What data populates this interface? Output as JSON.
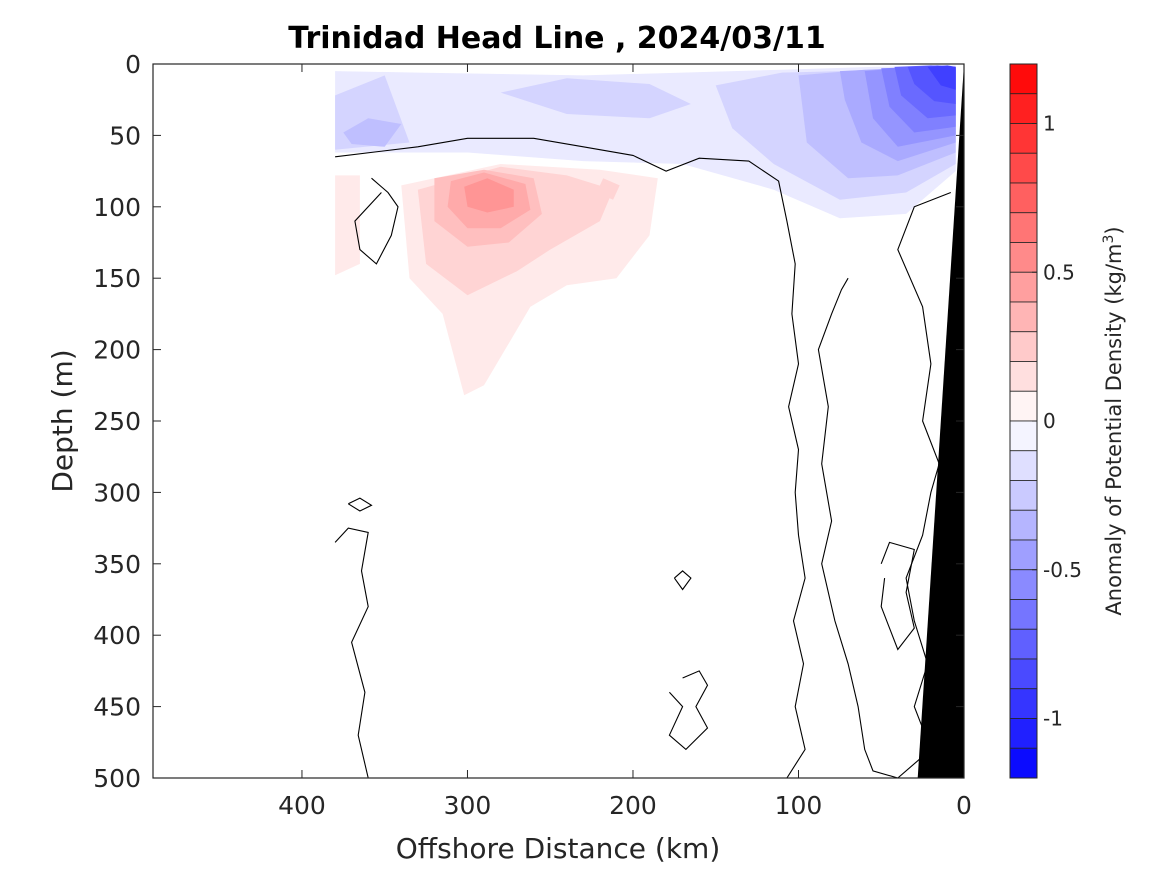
{
  "chart_data": {
    "type": "contour",
    "title": "Trinidad Head Line , 2024/03/11",
    "xlabel": "Offshore Distance (km)",
    "ylabel": "Depth (m)",
    "x_reversed": true,
    "y_reversed": true,
    "xlim": [
      0,
      490
    ],
    "ylim": [
      0,
      500
    ],
    "x_ticks": [
      400,
      300,
      200,
      100,
      0
    ],
    "x_tick_labels": [
      "400",
      "300",
      "200",
      "100",
      "0"
    ],
    "y_ticks": [
      0,
      50,
      100,
      150,
      200,
      250,
      300,
      350,
      400,
      450,
      500
    ],
    "y_tick_labels": [
      "0",
      "50",
      "100",
      "150",
      "200",
      "250",
      "300",
      "350",
      "400",
      "450",
      "500"
    ],
    "colorbar": {
      "label_prefix": "Anomaly of Potential Density (kg/m",
      "label_exponent": "3",
      "label_suffix": ")",
      "range": [
        -1.2,
        1.2
      ],
      "step": 0.1,
      "ticks": [
        1,
        0.5,
        0,
        -0.5,
        -1
      ],
      "tick_labels": [
        "1",
        "0.5",
        "0",
        "-0.5",
        "-1"
      ]
    },
    "zero_contour_color": "#000000",
    "bathymetry_color": "#000000",
    "regions": [
      {
        "name": "surface-negative",
        "level": -0.1,
        "points": [
          [
            380,
            5
          ],
          [
            330,
            6
          ],
          [
            230,
            8
          ],
          [
            170,
            6
          ],
          [
            110,
            4
          ],
          [
            55,
            2
          ],
          [
            5,
            1
          ],
          [
            5,
            75
          ],
          [
            35,
            105
          ],
          [
            75,
            108
          ],
          [
            115,
            88
          ],
          [
            170,
            70
          ],
          [
            230,
            68
          ],
          [
            300,
            62
          ],
          [
            380,
            62
          ]
        ]
      },
      {
        "name": "surface-negative",
        "level": -0.2,
        "points": [
          [
            380,
            22
          ],
          [
            350,
            8
          ],
          [
            335,
            55
          ],
          [
            380,
            60
          ]
        ]
      },
      {
        "name": "surface-negative",
        "level": -0.2,
        "points": [
          [
            280,
            20
          ],
          [
            240,
            10
          ],
          [
            190,
            14
          ],
          [
            165,
            28
          ],
          [
            190,
            38
          ],
          [
            240,
            35
          ]
        ]
      },
      {
        "name": "surface-negative",
        "level": -0.2,
        "points": [
          [
            150,
            15
          ],
          [
            110,
            6
          ],
          [
            40,
            4
          ],
          [
            5,
            5
          ],
          [
            5,
            70
          ],
          [
            35,
            90
          ],
          [
            75,
            95
          ],
          [
            115,
            70
          ],
          [
            140,
            45
          ]
        ]
      },
      {
        "name": "surface-negative",
        "level": -0.3,
        "points": [
          [
            375,
            48
          ],
          [
            360,
            38
          ],
          [
            340,
            42
          ],
          [
            350,
            58
          ],
          [
            370,
            56
          ]
        ]
      },
      {
        "name": "surface-negative",
        "level": -0.3,
        "points": [
          [
            100,
            8
          ],
          [
            60,
            4
          ],
          [
            5,
            4
          ],
          [
            5,
            62
          ],
          [
            40,
            78
          ],
          [
            70,
            80
          ],
          [
            95,
            55
          ]
        ]
      },
      {
        "name": "surface-negative",
        "level": -0.4,
        "points": [
          [
            75,
            5
          ],
          [
            40,
            3
          ],
          [
            5,
            4
          ],
          [
            5,
            55
          ],
          [
            40,
            68
          ],
          [
            62,
            55
          ],
          [
            72,
            25
          ]
        ]
      },
      {
        "name": "surface-negative",
        "level": -0.5,
        "points": [
          [
            60,
            5
          ],
          [
            30,
            2
          ],
          [
            5,
            3
          ],
          [
            5,
            50
          ],
          [
            40,
            58
          ],
          [
            55,
            38
          ]
        ]
      },
      {
        "name": "surface-negative",
        "level": -0.6,
        "points": [
          [
            50,
            3
          ],
          [
            25,
            2
          ],
          [
            5,
            3
          ],
          [
            5,
            44
          ],
          [
            30,
            48
          ],
          [
            45,
            30
          ]
        ]
      },
      {
        "name": "surface-negative",
        "level": -0.7,
        "points": [
          [
            42,
            2
          ],
          [
            20,
            1
          ],
          [
            5,
            2
          ],
          [
            5,
            36
          ],
          [
            22,
            38
          ],
          [
            38,
            22
          ]
        ]
      },
      {
        "name": "surface-negative",
        "level": -0.8,
        "points": [
          [
            34,
            2
          ],
          [
            16,
            1
          ],
          [
            5,
            2
          ],
          [
            5,
            28
          ],
          [
            18,
            26
          ],
          [
            30,
            14
          ]
        ]
      },
      {
        "name": "surface-negative",
        "level": -0.9,
        "points": [
          [
            22,
            2
          ],
          [
            10,
            1
          ],
          [
            5,
            2
          ],
          [
            5,
            18
          ],
          [
            14,
            15
          ]
        ]
      },
      {
        "name": "subsurface-positive",
        "level": 0.1,
        "points": [
          [
            380,
            78
          ],
          [
            365,
            78
          ],
          [
            365,
            140
          ],
          [
            380,
            148
          ]
        ]
      },
      {
        "name": "subsurface-positive",
        "level": 0.1,
        "points": [
          [
            340,
            85
          ],
          [
            280,
            70
          ],
          [
            220,
            74
          ],
          [
            185,
            80
          ],
          [
            190,
            120
          ],
          [
            210,
            150
          ],
          [
            240,
            155
          ],
          [
            262,
            170
          ],
          [
            290,
            225
          ],
          [
            302,
            232
          ],
          [
            315,
            175
          ],
          [
            335,
            150
          ]
        ]
      },
      {
        "name": "subsurface-positive",
        "level": 0.2,
        "points": [
          [
            330,
            88
          ],
          [
            280,
            72
          ],
          [
            240,
            78
          ],
          [
            212,
            88
          ],
          [
            220,
            110
          ],
          [
            250,
            130
          ],
          [
            270,
            145
          ],
          [
            300,
            162
          ],
          [
            325,
            140
          ]
        ]
      },
      {
        "name": "subsurface-positive",
        "level": 0.3,
        "points": [
          [
            320,
            80
          ],
          [
            290,
            74
          ],
          [
            260,
            80
          ],
          [
            255,
            105
          ],
          [
            275,
            125
          ],
          [
            300,
            128
          ],
          [
            320,
            110
          ]
        ]
      },
      {
        "name": "subsurface-positive",
        "level": 0.4,
        "points": [
          [
            310,
            82
          ],
          [
            290,
            76
          ],
          [
            265,
            84
          ],
          [
            262,
            102
          ],
          [
            280,
            115
          ],
          [
            300,
            115
          ],
          [
            312,
            100
          ]
        ]
      },
      {
        "name": "subsurface-positive",
        "level": 0.5,
        "points": [
          [
            302,
            86
          ],
          [
            288,
            80
          ],
          [
            272,
            88
          ],
          [
            272,
            100
          ],
          [
            288,
            104
          ],
          [
            300,
            100
          ]
        ]
      },
      {
        "name": "subsurface-positive",
        "level": 0.2,
        "points": [
          [
            218,
            80
          ],
          [
            208,
            85
          ],
          [
            212,
            95
          ],
          [
            222,
            90
          ]
        ]
      }
    ],
    "zero_contours": [
      [
        [
          380,
          65
        ],
        [
          330,
          58
        ],
        [
          300,
          52
        ],
        [
          260,
          52
        ],
        [
          230,
          58
        ],
        [
          200,
          64
        ],
        [
          180,
          75
        ],
        [
          160,
          66
        ],
        [
          130,
          68
        ],
        [
          112,
          82
        ],
        [
          107,
          110
        ],
        [
          102,
          140
        ],
        [
          104,
          175
        ],
        [
          100,
          210
        ],
        [
          106,
          240
        ],
        [
          100,
          270
        ],
        [
          102,
          300
        ],
        [
          100,
          330
        ],
        [
          96,
          360
        ],
        [
          103,
          390
        ],
        [
          97,
          420
        ],
        [
          102,
          450
        ],
        [
          96,
          480
        ],
        [
          107,
          500
        ]
      ],
      [
        [
          358,
          80
        ],
        [
          348,
          90
        ],
        [
          342,
          100
        ],
        [
          346,
          120
        ],
        [
          355,
          140
        ],
        [
          365,
          130
        ],
        [
          368,
          110
        ],
        [
          352,
          90
        ]
      ],
      [
        [
          372,
          308
        ],
        [
          365,
          313
        ],
        [
          358,
          309
        ],
        [
          365,
          304
        ],
        [
          372,
          308
        ]
      ],
      [
        [
          380,
          335
        ],
        [
          372,
          325
        ],
        [
          360,
          328
        ],
        [
          364,
          355
        ],
        [
          360,
          380
        ],
        [
          370,
          405
        ],
        [
          362,
          440
        ],
        [
          366,
          470
        ],
        [
          360,
          500
        ]
      ],
      [
        [
          175,
          360
        ],
        [
          170,
          368
        ],
        [
          165,
          360
        ],
        [
          170,
          355
        ],
        [
          175,
          360
        ]
      ],
      [
        [
          170,
          430
        ],
        [
          160,
          425
        ],
        [
          155,
          435
        ],
        [
          162,
          450
        ],
        [
          155,
          465
        ],
        [
          168,
          480
        ],
        [
          178,
          470
        ],
        [
          170,
          450
        ],
        [
          178,
          440
        ]
      ],
      [
        [
          70,
          150
        ],
        [
          74,
          158
        ],
        [
          80,
          175
        ],
        [
          88,
          200
        ],
        [
          82,
          240
        ],
        [
          86,
          280
        ],
        [
          80,
          320
        ],
        [
          86,
          350
        ],
        [
          78,
          390
        ],
        [
          70,
          420
        ],
        [
          64,
          450
        ],
        [
          60,
          480
        ],
        [
          55,
          495
        ],
        [
          40,
          500
        ],
        [
          20,
          480
        ],
        [
          30,
          450
        ],
        [
          22,
          420
        ],
        [
          30,
          390
        ],
        [
          35,
          360
        ],
        [
          25,
          330
        ],
        [
          20,
          300
        ],
        [
          15,
          280
        ],
        [
          25,
          250
        ],
        [
          20,
          210
        ],
        [
          25,
          170
        ],
        [
          40,
          130
        ],
        [
          30,
          100
        ],
        [
          8,
          90
        ]
      ],
      [
        [
          50,
          350
        ],
        [
          45,
          335
        ],
        [
          30,
          340
        ],
        [
          35,
          370
        ],
        [
          30,
          395
        ],
        [
          40,
          410
        ],
        [
          50,
          380
        ],
        [
          48,
          360
        ]
      ]
    ],
    "bathymetry": [
      [
        0,
        0
      ],
      [
        28,
        500
      ],
      [
        0,
        500
      ]
    ]
  }
}
